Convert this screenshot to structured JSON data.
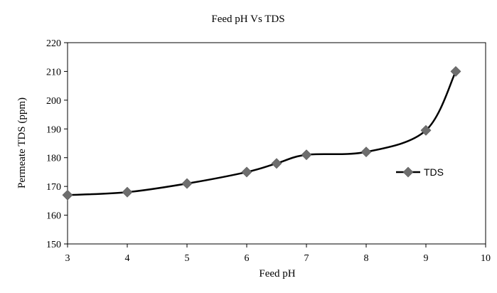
{
  "chart_data": {
    "type": "line",
    "title": "Feed pH Vs TDS",
    "xlabel": "Feed pH",
    "ylabel": "Permeate TDS (ppm)",
    "xlim": [
      3,
      10
    ],
    "ylim": [
      150,
      220
    ],
    "xticks": [
      3,
      4,
      5,
      6,
      7,
      8,
      9,
      10
    ],
    "yticks": [
      150,
      160,
      170,
      180,
      190,
      200,
      210,
      220
    ],
    "grid": false,
    "legend_position": "right",
    "series": [
      {
        "name": "TDS",
        "color": "#000000",
        "marker_color": "#6e6e6e",
        "marker": "diamond",
        "smooth": true,
        "x": [
          3,
          4,
          5,
          6,
          6.5,
          7,
          8,
          9,
          9.5
        ],
        "y": [
          167,
          168,
          171,
          175,
          178,
          181,
          182,
          189.5,
          210
        ]
      }
    ]
  }
}
